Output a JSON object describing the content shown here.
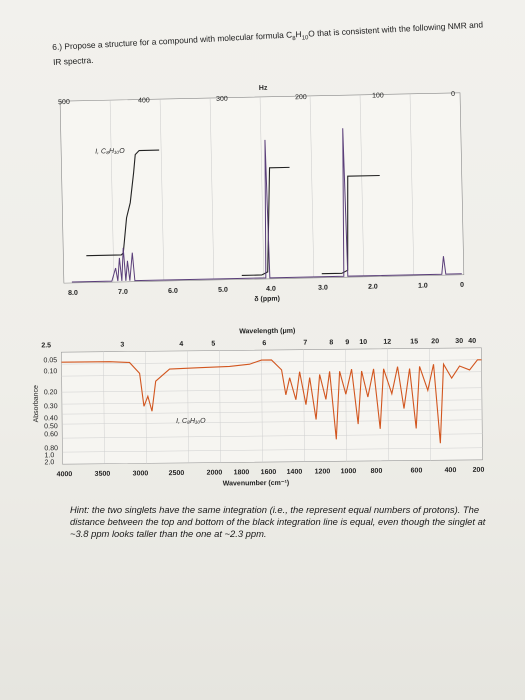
{
  "question": {
    "number": "6.)",
    "text_before": "Propose a structure for a compound with molecular formula C",
    "formula_c": "8",
    "formula_h": "H",
    "formula_hn": "10",
    "formula_o": "O",
    "text_after": " that is consistent with the following NMR and IR spectra."
  },
  "nmr": {
    "hz_label": "Hz",
    "hz_ticks": [
      "500",
      "400",
      "300",
      "200",
      "100",
      "0"
    ],
    "ppm_ticks": [
      "8.0",
      "7.0",
      "6.0",
      "5.0",
      "4.0",
      "3.0",
      "2.0",
      "1.0",
      "0"
    ],
    "axis_label": "δ (ppm)",
    "compound_label": "I, C₈H₁₀O"
  },
  "ir": {
    "top_label": "Wavelength (μm)",
    "wavelength_ticks": [
      "2.5",
      "3",
      "4",
      "5",
      "6",
      "7",
      "8",
      "9",
      "10",
      "12",
      "15",
      "20",
      "30",
      "40"
    ],
    "absorbance_label": "Absorbance",
    "absorbance_ticks": [
      "0.05",
      "0.10",
      "0.20",
      "0.30",
      "0.40",
      "0.50",
      "0.60",
      "0.80",
      "1.0",
      "2.0"
    ],
    "wavenumber_ticks": [
      "4000",
      "3500",
      "3000",
      "2500",
      "2000",
      "1800",
      "1600",
      "1400",
      "1200",
      "1000",
      "800",
      "600",
      "400",
      "200"
    ],
    "bottom_label": "Wavenumber (cm⁻¹)",
    "compound_label": "I, C₈H₁₀O"
  },
  "hint": {
    "text": "Hint: the two singlets have the same integration (i.e., the represent equal numbers of protons). The distance between the top and bottom of the black integration line is equal, even though the singlet at ~3.8 ppm looks taller than the one at ~2.3 ppm."
  }
}
